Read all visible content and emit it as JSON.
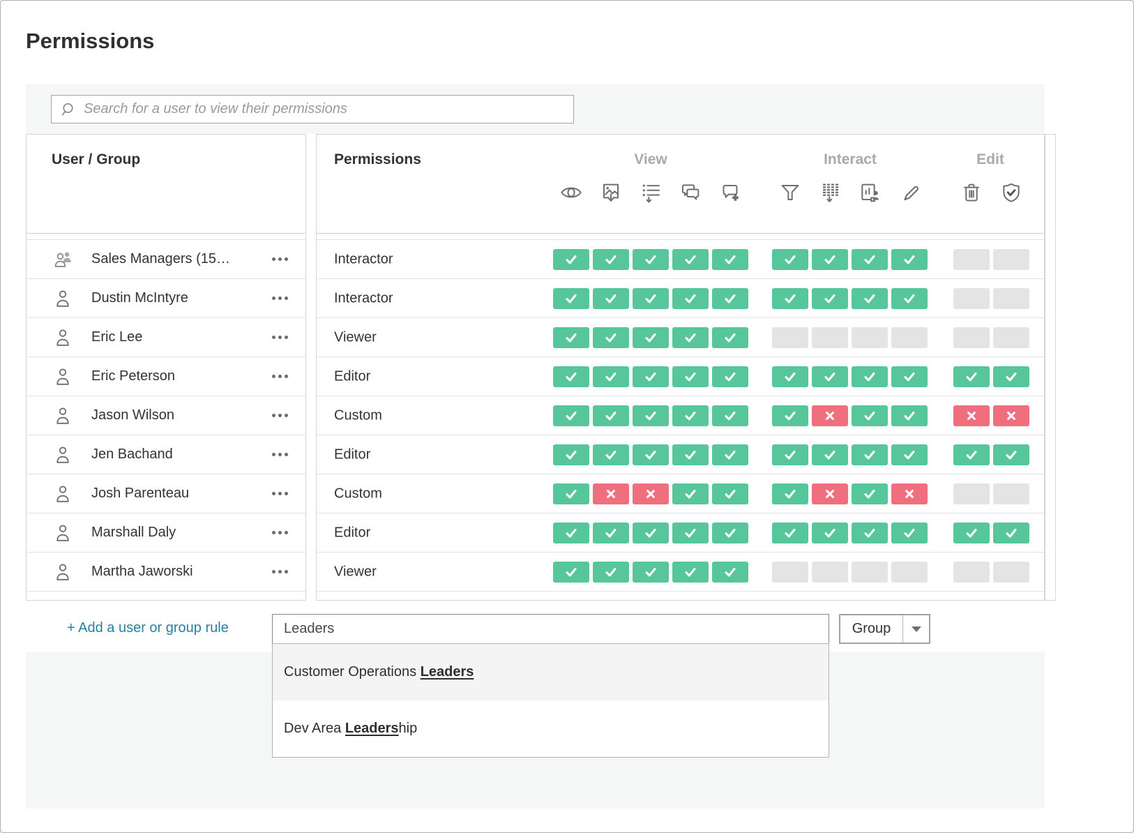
{
  "title": "Permissions",
  "search": {
    "placeholder": "Search for a user to view their permissions"
  },
  "table": {
    "left_header": "User / Group",
    "perm_header": "Permissions",
    "groups": [
      {
        "label": "View",
        "icons": [
          "view",
          "export-image",
          "view-summary-data",
          "view-comments",
          "add-comments"
        ]
      },
      {
        "label": "Interact",
        "icons": [
          "filter",
          "download-full-data",
          "share-customized",
          "web-edit"
        ]
      },
      {
        "label": "Edit",
        "icons": [
          "delete",
          "set-permissions"
        ]
      }
    ],
    "rows": [
      {
        "name": "Sales Managers (15…",
        "type": "group",
        "role": "Interactor",
        "perms": {
          "view": [
            "A",
            "A",
            "A",
            "A",
            "A"
          ],
          "interact": [
            "A",
            "A",
            "A",
            "A"
          ],
          "edit": [
            "U",
            "U"
          ]
        }
      },
      {
        "name": "Dustin McIntyre",
        "type": "user",
        "role": "Interactor",
        "perms": {
          "view": [
            "A",
            "A",
            "A",
            "A",
            "A"
          ],
          "interact": [
            "A",
            "A",
            "A",
            "A"
          ],
          "edit": [
            "U",
            "U"
          ]
        }
      },
      {
        "name": "Eric Lee",
        "type": "user",
        "role": "Viewer",
        "perms": {
          "view": [
            "A",
            "A",
            "A",
            "A",
            "A"
          ],
          "interact": [
            "U",
            "U",
            "U",
            "U"
          ],
          "edit": [
            "U",
            "U"
          ]
        }
      },
      {
        "name": "Eric Peterson",
        "type": "user",
        "role": "Editor",
        "perms": {
          "view": [
            "A",
            "A",
            "A",
            "A",
            "A"
          ],
          "interact": [
            "A",
            "A",
            "A",
            "A"
          ],
          "edit": [
            "A",
            "A"
          ]
        }
      },
      {
        "name": "Jason Wilson",
        "type": "user",
        "role": "Custom",
        "perms": {
          "view": [
            "A",
            "A",
            "A",
            "A",
            "A"
          ],
          "interact": [
            "A",
            "D",
            "A",
            "A"
          ],
          "edit": [
            "D",
            "D"
          ]
        }
      },
      {
        "name": "Jen Bachand",
        "type": "user",
        "role": "Editor",
        "perms": {
          "view": [
            "A",
            "A",
            "A",
            "A",
            "A"
          ],
          "interact": [
            "A",
            "A",
            "A",
            "A"
          ],
          "edit": [
            "A",
            "A"
          ]
        }
      },
      {
        "name": "Josh Parenteau",
        "type": "user",
        "role": "Custom",
        "perms": {
          "view": [
            "A",
            "D",
            "D",
            "A",
            "A"
          ],
          "interact": [
            "A",
            "D",
            "A",
            "D"
          ],
          "edit": [
            "U",
            "U"
          ]
        }
      },
      {
        "name": "Marshall Daly",
        "type": "user",
        "role": "Editor",
        "perms": {
          "view": [
            "A",
            "A",
            "A",
            "A",
            "A"
          ],
          "interact": [
            "A",
            "A",
            "A",
            "A"
          ],
          "edit": [
            "A",
            "A"
          ]
        }
      },
      {
        "name": "Martha Jaworski",
        "type": "user",
        "role": "Viewer",
        "perms": {
          "view": [
            "A",
            "A",
            "A",
            "A",
            "A"
          ],
          "interact": [
            "U",
            "U",
            "U",
            "U"
          ],
          "edit": [
            "U",
            "U"
          ]
        }
      }
    ]
  },
  "footer": {
    "add_rule_label": "+ Add a user or group rule",
    "input_value": "Leaders",
    "type_selector": {
      "value": "Group"
    },
    "suggestions": [
      {
        "prefix": "Customer Operations ",
        "match": "Leaders",
        "suffix": "",
        "highlighted": true
      },
      {
        "prefix": "Dev Area ",
        "match": "Leaders",
        "suffix": "hip",
        "highlighted": false
      }
    ]
  },
  "colors": {
    "allow": "#57c69a",
    "deny": "#ef6f7e",
    "unset": "#e4e4e4",
    "link": "#27809e"
  }
}
